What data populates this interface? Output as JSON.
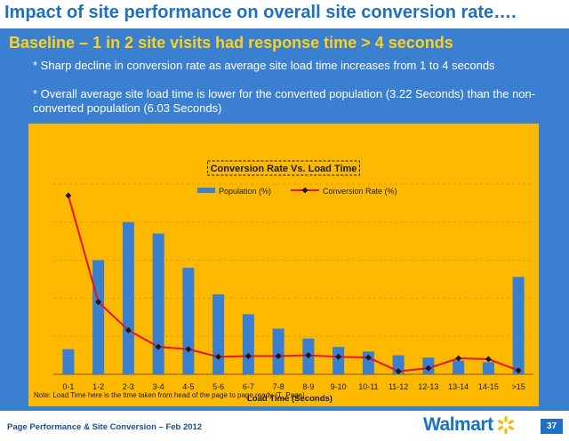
{
  "slide": {
    "title": "Impact of site performance on overall site conversion rate….",
    "subtitle": "Baseline – 1 in 2 site visits had response time > 4 seconds",
    "bullets": [
      "* Sharp decline in conversion rate as average site load time increases from 1 to 4 seconds",
      "* Overall average site load time is lower for the converted population (3.22 Seconds) than the non-converted population (6.03 Seconds)"
    ],
    "note": "Note: Load Time here is the time taken from head of the page to page ready (T_Page)"
  },
  "footer": {
    "text": "Page Performance & Site Conversion – Feb 2012",
    "logo": "Walmart",
    "logo_icon": "walmart-spark-icon",
    "page_number": "37"
  },
  "colors": {
    "title": "#1f6fc5",
    "panel": "#3a7fd0",
    "subtitle": "#ffd21f",
    "chart_bg": "#fcb900",
    "bar": "#3a7fd0",
    "line": "#e8141b",
    "marker": "#1a1a1a"
  },
  "chart_data": {
    "type": "bar",
    "title": "Conversion Rate Vs. Load Time",
    "xlabel": "Load Time (Seconds)",
    "ylabel": "",
    "categories": [
      "0-1",
      "1-2",
      "2-3",
      "3-4",
      "4-5",
      "5-6",
      "6-7",
      "7-8",
      "8-9",
      "9-10",
      "10-11",
      "11-12",
      "12-13",
      "13-14",
      "14-15",
      ">15"
    ],
    "series": [
      {
        "name": "Population (%)",
        "kind": "bar",
        "values": [
          3.3,
          15.0,
          20.0,
          18.5,
          14.0,
          10.5,
          7.9,
          6.0,
          4.7,
          3.6,
          3.0,
          2.5,
          2.2,
          1.8,
          1.6,
          12.8
        ]
      },
      {
        "name": "Conversion Rate (%)",
        "kind": "line",
        "values": [
          23.5,
          9.5,
          5.8,
          3.6,
          3.3,
          2.3,
          2.4,
          2.4,
          2.5,
          2.3,
          2.2,
          0.4,
          0.8,
          2.1,
          2.0,
          0.5
        ]
      }
    ],
    "ylim": [
      0,
      25
    ],
    "grid": true,
    "legend": "top-center"
  }
}
